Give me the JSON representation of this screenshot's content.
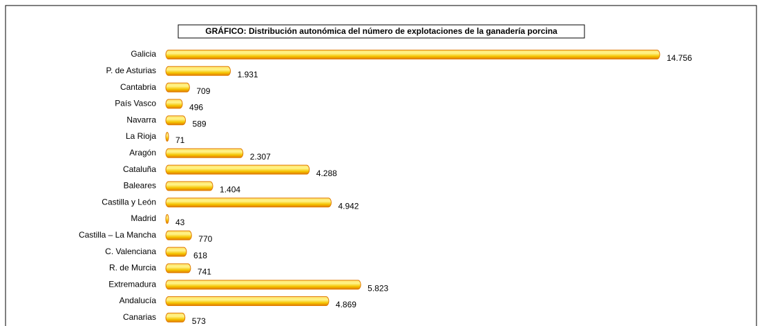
{
  "chart_data": {
    "type": "bar",
    "orientation": "horizontal",
    "title": "GRÁFICO: Distribución autonómica del número de explotaciones de la ganadería porcina",
    "categories": [
      "Galicia",
      "P. de Asturias",
      "Cantabria",
      "País Vasco",
      "Navarra",
      "La Rioja",
      "Aragón",
      "Cataluña",
      "Baleares",
      "Castilla y León",
      "Madrid",
      "Castilla – La Mancha",
      "C. Valenciana",
      "R. de Murcia",
      "Extremadura",
      "Andalucía",
      "Canarias"
    ],
    "values": [
      14756,
      1931,
      709,
      496,
      589,
      71,
      2307,
      4288,
      1404,
      4942,
      43,
      770,
      618,
      741,
      5823,
      4869,
      573
    ],
    "value_labels": [
      "14.756",
      "1.931",
      "709",
      "496",
      "589",
      "71",
      "2.307",
      "4.288",
      "1.404",
      "4.942",
      "43",
      "770",
      "618",
      "741",
      "5.823",
      "4.869",
      "573"
    ],
    "color": "#f5c400"
  }
}
